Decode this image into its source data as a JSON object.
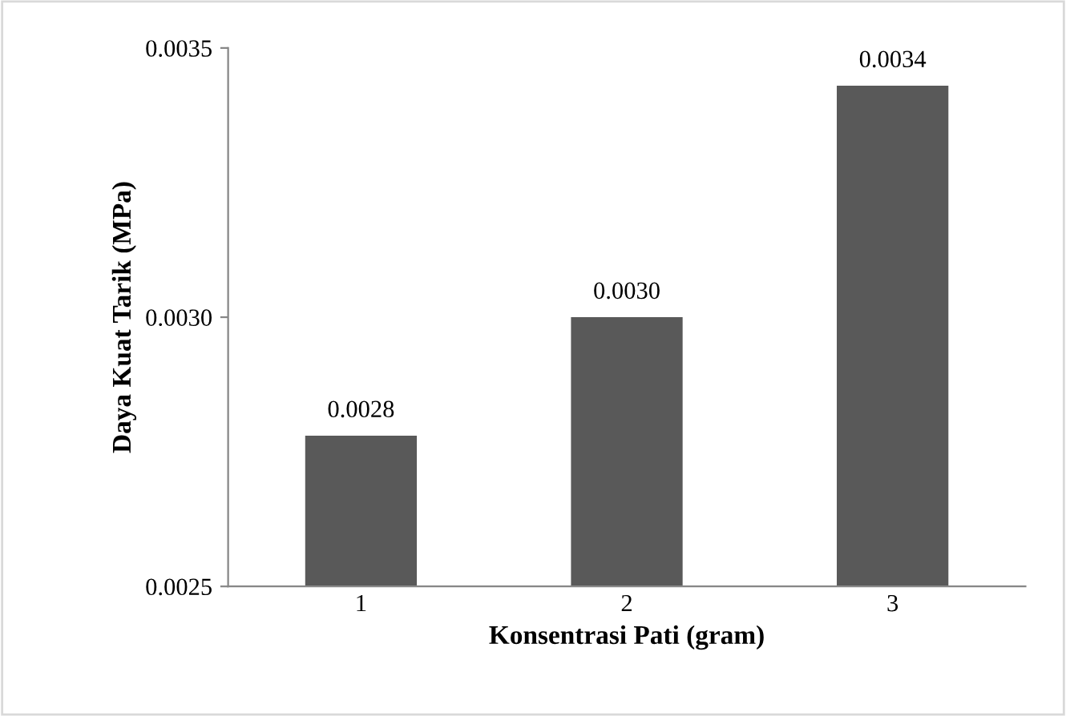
{
  "chart_data": {
    "type": "bar",
    "xlabel": "Konsentrasi Pati (gram)",
    "ylabel": "Daya Kuat Tarik (MPa)",
    "categories": [
      "1",
      "2",
      "3"
    ],
    "values": [
      0.00278,
      0.003,
      0.00343
    ],
    "value_labels": [
      "0.0028",
      "0.0030",
      "0.0034"
    ],
    "color": "#595959",
    "ylim": [
      0.0025,
      0.0035
    ],
    "yticks": [
      {
        "value": 0.0025,
        "label": "0.0025"
      },
      {
        "value": 0.003,
        "label": "0.0030"
      },
      {
        "value": 0.0035,
        "label": "0.0035"
      }
    ],
    "grid": false,
    "legend": false
  }
}
